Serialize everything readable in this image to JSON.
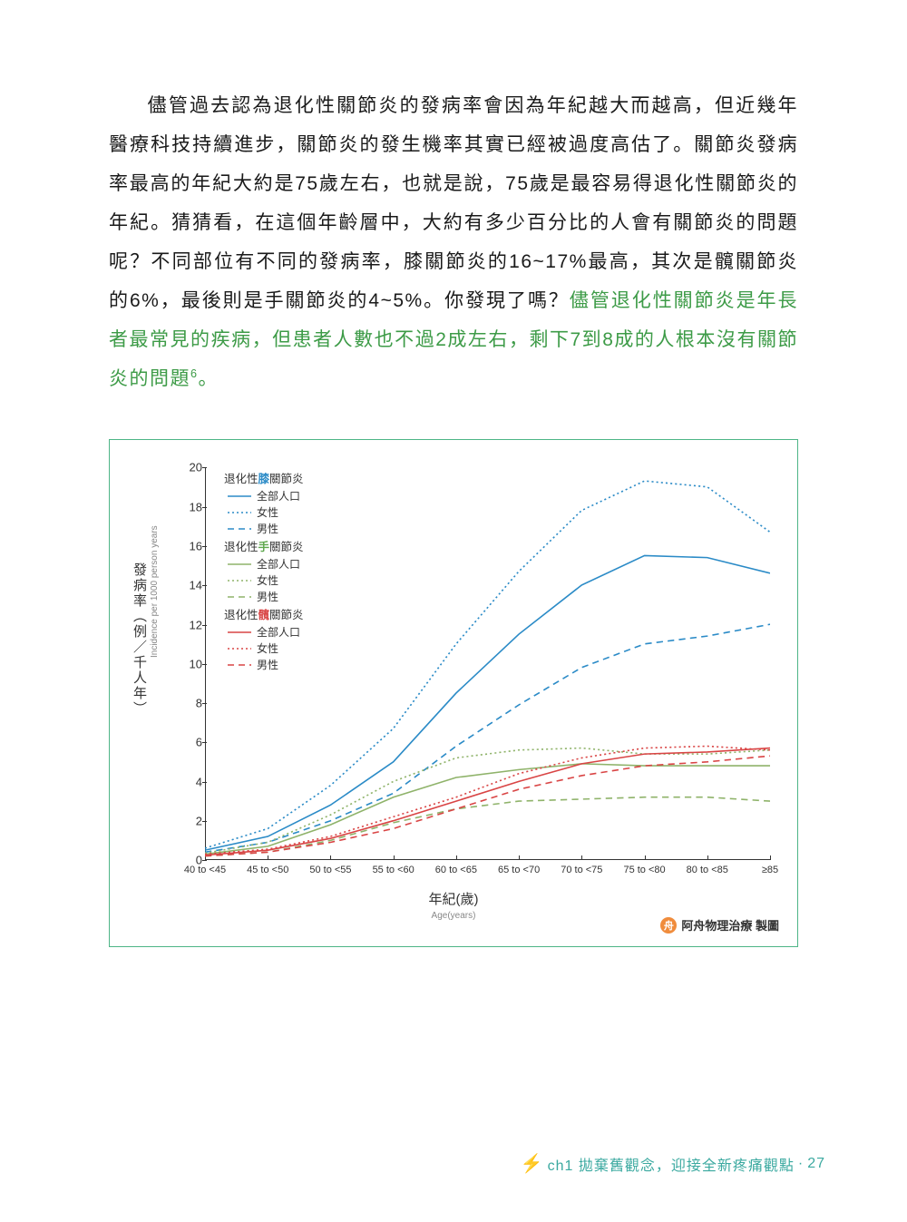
{
  "text": {
    "p1a": "儘管過去認為退化性關節炎的發病率會因為年紀越大而越高，但近幾年醫療科技持續進步，關節炎的發生機率其實已經被過度高估了。關節炎發病率最高的年紀大約是75歲左右，也就是說，75歲是最容易得退化性關節炎的年紀。猜猜看，在這個年齡層中，大約有多少百分比的人會有關節炎的問題呢？不同部位有不同的發病率，膝關節炎的16~17%最高，其次是髖關節炎的6%，最後則是手關節炎的4~5%。你發現了嗎？",
    "p1b": "儘管退化性關節炎是年長者最常見的疾病，但患者人數也不過2成左右，剩下7到8成的人根本沒有關節炎的問題",
    "p1c": "。",
    "footnote": "6"
  },
  "chart": {
    "ylim": [
      0,
      20
    ],
    "yticks": [
      0,
      2,
      4,
      6,
      8,
      10,
      12,
      14,
      16,
      18,
      20
    ],
    "y_title_cn": "發病率（例／千人年）",
    "y_title_en": "Incidence per 1000 person years",
    "x_title_cn": "年紀(歲)",
    "x_title_en": "Age(years)",
    "x_categories": [
      "40 to <45",
      "45 to <50",
      "50 to <55",
      "55 to <60",
      "60 to <65",
      "65 to <70",
      "70 to <75",
      "75 to <80",
      "80 to <85",
      "≥85"
    ],
    "colors": {
      "knee": "#2b8bc7",
      "hand": "#8fb36a",
      "hip": "#d94545",
      "axis": "#333333",
      "border": "#4db586"
    },
    "stroke_width": 1.6,
    "dash_dot": "2 3",
    "dash_dash": "7 5",
    "legend": {
      "group_knee": "退化性膝關節炎",
      "group_hand": "退化性手關節炎",
      "group_hip": "退化性髖關節炎",
      "all": "全部人口",
      "female": "女性",
      "male": "男性"
    },
    "series": {
      "knee_all": [
        0.5,
        1.2,
        2.8,
        5.0,
        8.5,
        11.5,
        14.0,
        15.5,
        15.4,
        14.6
      ],
      "knee_f": [
        0.6,
        1.6,
        3.8,
        6.7,
        11.0,
        14.7,
        17.8,
        19.3,
        19.0,
        16.7
      ],
      "knee_m": [
        0.4,
        0.9,
        2.0,
        3.4,
        5.8,
        7.9,
        9.8,
        11.0,
        11.4,
        12.0
      ],
      "hand_all": [
        0.3,
        0.7,
        1.8,
        3.2,
        4.2,
        4.6,
        4.9,
        4.8,
        4.8,
        4.8
      ],
      "hand_f": [
        0.35,
        0.9,
        2.3,
        4.0,
        5.2,
        5.6,
        5.7,
        5.4,
        5.4,
        5.6
      ],
      "hand_m": [
        0.2,
        0.4,
        1.0,
        1.9,
        2.6,
        3.0,
        3.1,
        3.2,
        3.2,
        3.0
      ],
      "hip_all": [
        0.25,
        0.5,
        1.1,
        2.0,
        3.0,
        4.0,
        4.9,
        5.4,
        5.5,
        5.7
      ],
      "hip_f": [
        0.3,
        0.55,
        1.2,
        2.2,
        3.2,
        4.4,
        5.2,
        5.7,
        5.8,
        5.6
      ],
      "hip_m": [
        0.2,
        0.4,
        0.9,
        1.6,
        2.6,
        3.6,
        4.3,
        4.8,
        5.0,
        5.3
      ]
    },
    "credit": "阿舟物理治療 製圖",
    "credit_icon": "舟"
  },
  "footer": {
    "chapter": "ch1 拋棄舊觀念，迎接全新疼痛觀點",
    "sep": "·",
    "page": "27"
  }
}
